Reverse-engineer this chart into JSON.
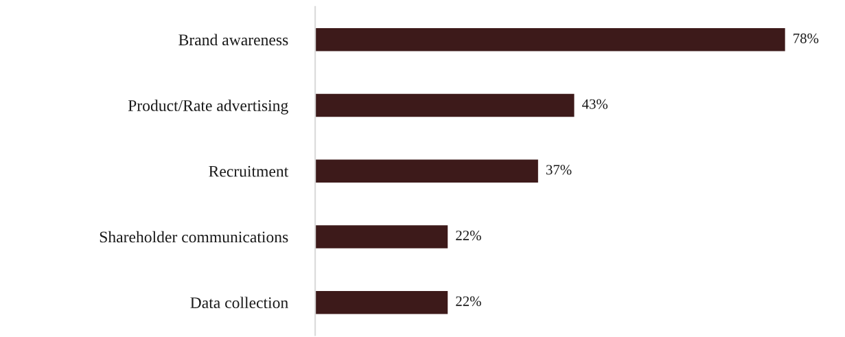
{
  "chart_data": {
    "type": "bar",
    "orientation": "horizontal",
    "categories": [
      "Brand awareness",
      "Product/Rate advertising",
      "Recruitment",
      "Shareholder communications",
      "Data collection"
    ],
    "values": [
      78,
      43,
      37,
      22,
      22
    ],
    "value_labels": [
      "78%",
      "43%",
      "37%",
      "22%",
      "22%"
    ],
    "color": "#3d1a1a",
    "grid": false,
    "legend": false
  }
}
